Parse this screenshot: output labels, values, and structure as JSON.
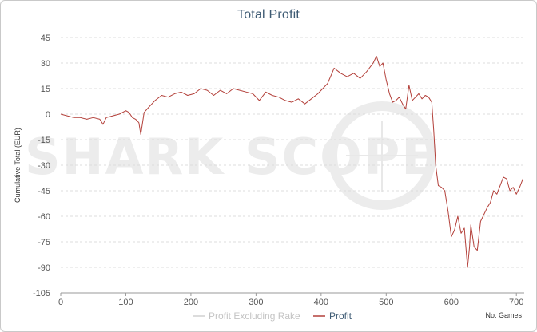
{
  "chart_data": {
    "type": "line",
    "title": "Total Profit",
    "ylabel": "Cumulative Total (EUR)",
    "xlabel": "No. Games",
    "xlim": [
      0,
      712
    ],
    "ylim": [
      -105,
      45
    ],
    "xticks": [
      0,
      100,
      200,
      300,
      400,
      500,
      600,
      700
    ],
    "yticks": [
      45,
      30,
      15,
      0,
      -15,
      -30,
      -45,
      -60,
      -75,
      -90,
      -105
    ],
    "grid": true,
    "legend_position": "bottom-center",
    "watermark": "SHARKSCOPE",
    "series": [
      {
        "name": "Profit Excluding Rake",
        "color": "#d0d0d0",
        "visible": false,
        "x": [],
        "y": []
      },
      {
        "name": "Profit",
        "color": "#b3403a",
        "x": [
          0,
          10,
          20,
          30,
          40,
          50,
          60,
          65,
          70,
          80,
          90,
          100,
          105,
          110,
          115,
          120,
          123,
          128,
          135,
          145,
          155,
          165,
          175,
          185,
          195,
          205,
          215,
          225,
          235,
          245,
          255,
          265,
          275,
          285,
          295,
          305,
          315,
          325,
          335,
          345,
          355,
          365,
          375,
          385,
          395,
          405,
          410,
          420,
          430,
          440,
          450,
          460,
          470,
          480,
          485,
          490,
          495,
          500,
          505,
          510,
          515,
          520,
          525,
          530,
          535,
          540,
          545,
          550,
          555,
          560,
          565,
          570,
          573,
          576,
          580,
          585,
          590,
          595,
          600,
          605,
          610,
          615,
          620,
          625,
          628,
          630,
          635,
          640,
          645,
          650,
          655,
          660,
          665,
          670,
          675,
          680,
          685,
          690,
          695,
          700,
          705,
          710
        ],
        "y": [
          0,
          -1,
          -2,
          -2,
          -3,
          -2,
          -3,
          -6,
          -2,
          -1,
          0,
          2,
          1,
          -2,
          -3,
          -5,
          -12,
          1,
          4,
          8,
          11,
          10,
          12,
          13,
          11,
          12,
          15,
          14,
          11,
          14,
          12,
          15,
          14,
          13,
          12,
          8,
          13,
          11,
          10,
          8,
          7,
          9,
          6,
          9,
          12,
          16,
          18,
          27,
          24,
          22,
          24,
          21,
          25,
          30,
          34,
          28,
          30,
          20,
          12,
          7,
          8,
          10,
          6,
          3,
          17,
          8,
          10,
          12,
          9,
          11,
          10,
          7,
          -10,
          -30,
          -42,
          -43,
          -45,
          -57,
          -72,
          -68,
          -60,
          -70,
          -67,
          -90,
          -78,
          -65,
          -78,
          -80,
          -63,
          -59,
          -55,
          -52,
          -45,
          -47,
          -42,
          -37,
          -38,
          -45,
          -43,
          -47,
          -43,
          -38
        ]
      }
    ]
  }
}
